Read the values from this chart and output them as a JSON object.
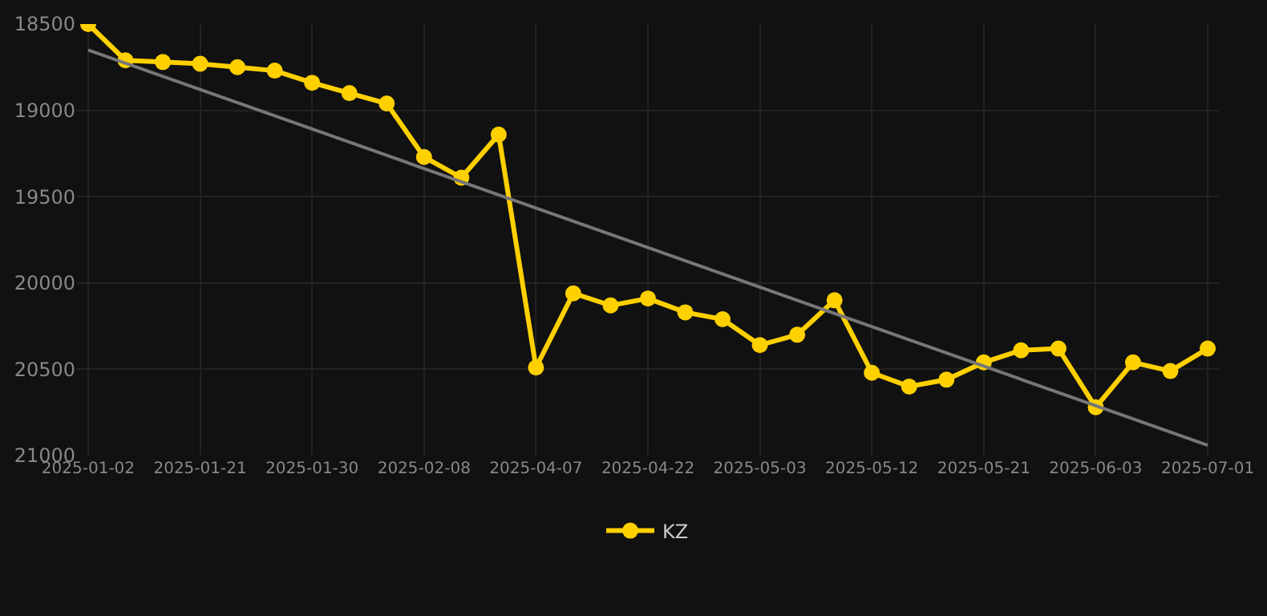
{
  "chart_data": {
    "type": "line",
    "categories": [
      "2025-01-02",
      null,
      null,
      "2025-01-21",
      null,
      null,
      "2025-01-30",
      null,
      null,
      "2025-02-08",
      null,
      null,
      "2025-04-07",
      null,
      null,
      "2025-04-22",
      null,
      null,
      "2025-05-03",
      null,
      null,
      "2025-05-12",
      null,
      null,
      "2025-05-21",
      null,
      null,
      "2025-06-03",
      null,
      null,
      "2025-07-01"
    ],
    "series": [
      {
        "name": "KZ",
        "color": "#ffd000",
        "marker": "circle",
        "values": [
          18500,
          18710,
          18720,
          18730,
          18750,
          18770,
          18840,
          18900,
          18960,
          19270,
          19390,
          19140,
          20490,
          20060,
          20130,
          20090,
          20170,
          20210,
          20360,
          20300,
          20100,
          20520,
          20600,
          20560,
          20460,
          20390,
          20380,
          20720,
          20460,
          20510,
          20380
        ]
      },
      {
        "type": "line",
        "color": "#777777",
        "marker": "none",
        "values": [
          18650,
          null,
          null,
          null,
          null,
          null,
          null,
          null,
          null,
          null,
          null,
          null,
          null,
          null,
          null,
          null,
          null,
          null,
          null,
          null,
          null,
          null,
          null,
          null,
          null,
          null,
          null,
          null,
          null,
          null,
          20940
        ]
      }
    ],
    "ylim": [
      21000,
      18500
    ],
    "yticks": [
      18500,
      19000,
      19500,
      20000,
      20500,
      21000
    ],
    "grid": true,
    "legend": "bottom"
  }
}
